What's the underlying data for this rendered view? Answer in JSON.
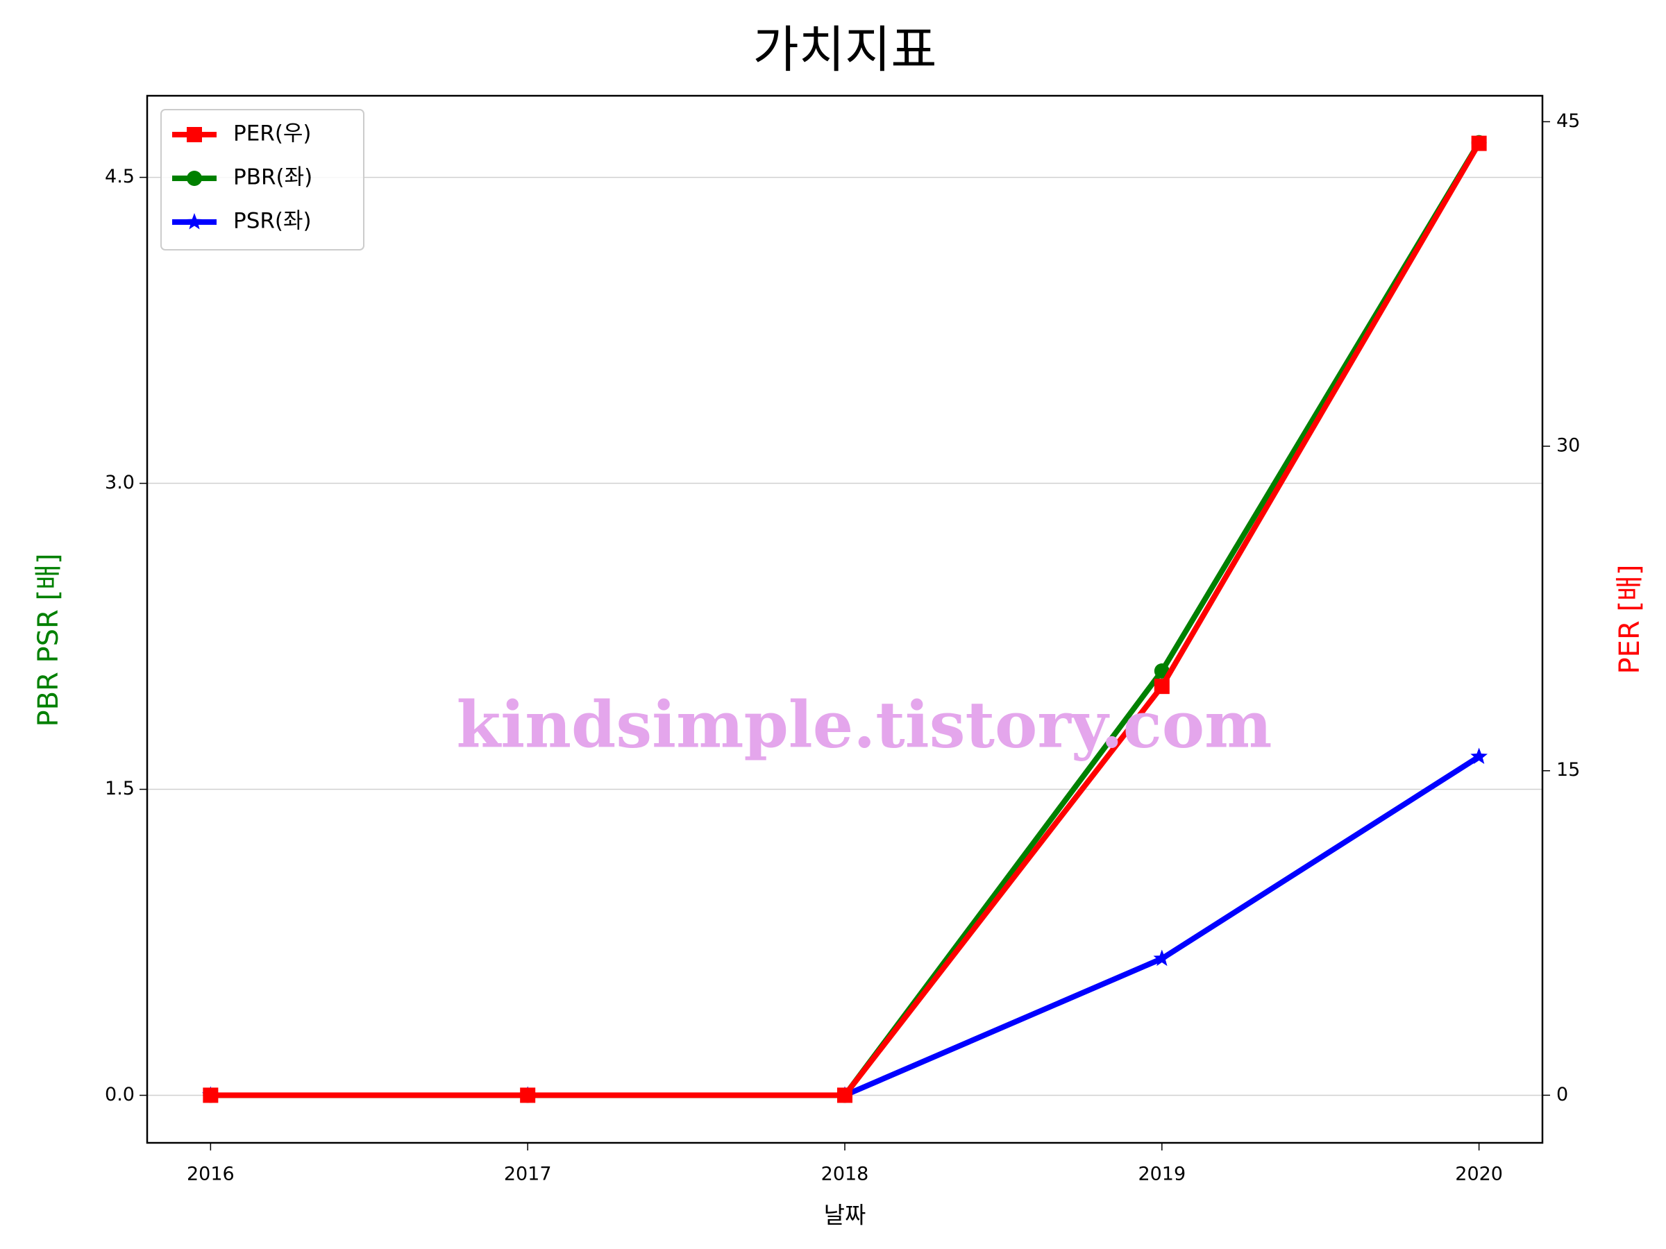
{
  "chart_data": {
    "type": "line",
    "title": "가치지표",
    "x": [
      2016,
      2017,
      2018,
      2019,
      2020
    ],
    "xlabel": "날짜",
    "ylabel": "PBR PSR [배]",
    "y2label": "PER [배]",
    "ylabel_color": "#008000",
    "y2label_color": "#ff0000",
    "series": [
      {
        "name": "PER(우)",
        "color": "#ff0000",
        "marker": "square",
        "axis": "y2",
        "values": [
          0,
          0,
          0,
          18.9,
          44.0
        ]
      },
      {
        "name": "PBR(좌)",
        "color": "#008000",
        "marker": "circle",
        "values": [
          0,
          0,
          0,
          2.08,
          4.67
        ]
      },
      {
        "name": "PSR(좌)",
        "color": "#0000ff",
        "marker": "star",
        "values": [
          0,
          0,
          0,
          0.67,
          1.66
        ]
      }
    ],
    "xlim": [
      2015.8,
      2020.2
    ],
    "xticks": [
      2016,
      2017,
      2018,
      2019,
      2020
    ],
    "ylim": [
      -0.233,
      4.9
    ],
    "yticks": [
      {
        "value": 0,
        "label": "0.0"
      },
      1.5,
      {
        "value": 3,
        "label": "3.0"
      },
      4.5
    ],
    "y2lim": [
      -2.2,
      46.2
    ],
    "y2ticks": [
      0,
      15,
      30,
      45
    ],
    "grid": true,
    "legend": "upper left",
    "watermark": "kindsimple.tistory.com",
    "watermark_color": "#e4a6ec"
  }
}
